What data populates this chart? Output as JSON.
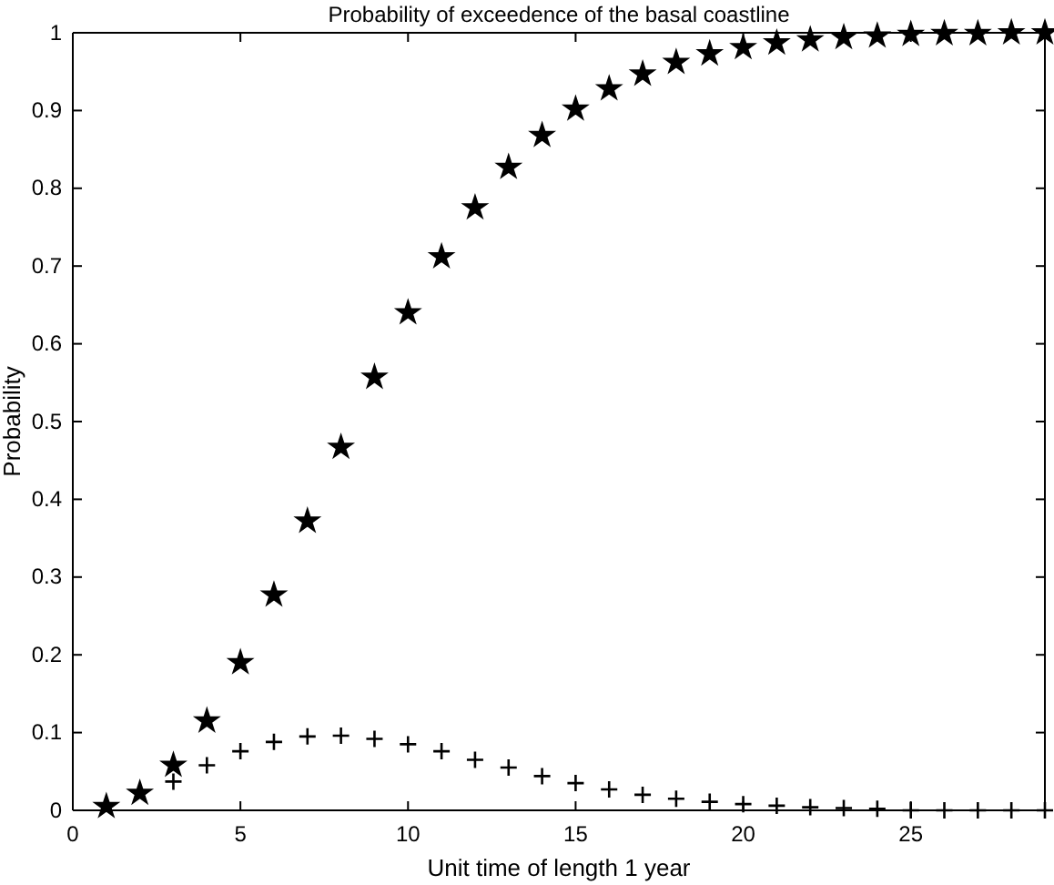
{
  "chart_data": {
    "type": "scatter",
    "title": "Probability of exceedence of the basal coastline",
    "xlabel": "Unit time of length 1 year",
    "ylabel": "Probability",
    "x": [
      1,
      2,
      3,
      4,
      5,
      6,
      7,
      8,
      9,
      10,
      11,
      12,
      13,
      14,
      15,
      16,
      17,
      18,
      19,
      20,
      21,
      22,
      23,
      24,
      25,
      26,
      27,
      28,
      29
    ],
    "series": [
      {
        "color": "#000000",
        "marker": "star",
        "values": [
          0.005,
          0.022,
          0.058,
          0.115,
          0.19,
          0.277,
          0.372,
          0.467,
          0.557,
          0.64,
          0.712,
          0.775,
          0.827,
          0.868,
          0.902,
          0.928,
          0.947,
          0.962,
          0.973,
          0.981,
          0.987,
          0.991,
          0.994,
          0.996,
          0.998,
          0.999,
          0.999,
          1.0,
          1.0
        ]
      },
      {
        "color": "#000000",
        "marker": "cross",
        "values": [
          null,
          null,
          0.037,
          0.058,
          0.076,
          0.088,
          0.095,
          0.096,
          0.092,
          0.085,
          0.076,
          0.065,
          0.055,
          0.044,
          0.035,
          0.027,
          0.02,
          0.015,
          0.011,
          0.008,
          0.006,
          0.004,
          0.003,
          0.002,
          0,
          0,
          0,
          0,
          0
        ]
      }
    ],
    "xlim": [
      0,
      29
    ],
    "xticks": [
      0,
      5,
      10,
      15,
      20,
      25
    ],
    "ylim": [
      0,
      1
    ],
    "yticks": [
      0,
      0.1,
      0.2,
      0.3,
      0.4,
      0.5,
      0.6,
      0.7,
      0.8,
      0.9,
      1
    ],
    "grid": false
  }
}
